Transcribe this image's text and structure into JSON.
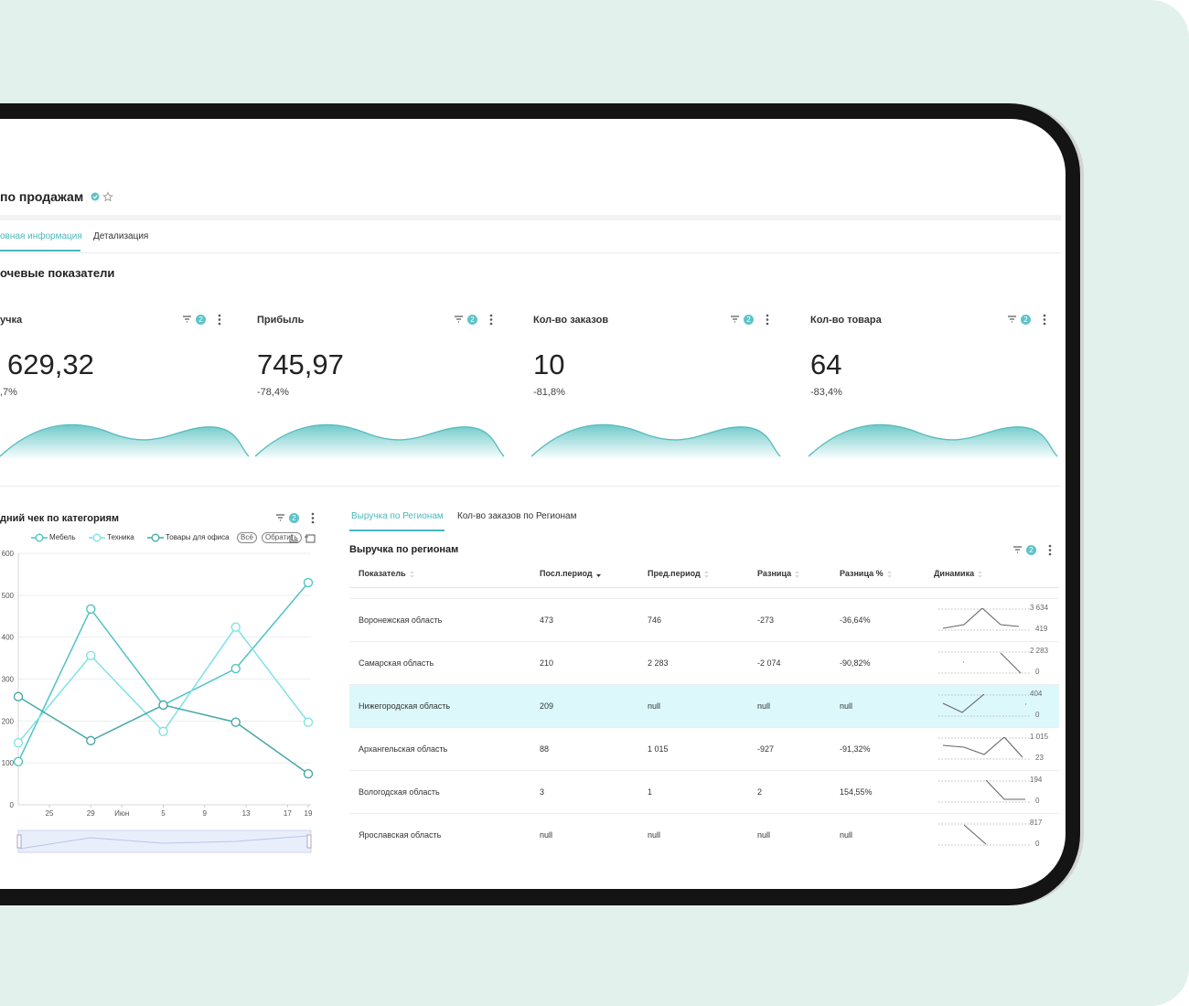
{
  "header": {
    "title": "по продажам"
  },
  "tabs": [
    "овная информация",
    "Детализация"
  ],
  "section_title": "очевые показатели",
  "kpis": [
    {
      "title": "учка",
      "value": "629,32",
      "change": ",7%",
      "filters": "2"
    },
    {
      "title": "Прибыль",
      "value": "745,97",
      "change": "-78,4%",
      "filters": "2"
    },
    {
      "title": "Кол-во заказов",
      "value": "10",
      "change": "-81,8%",
      "filters": "2"
    },
    {
      "title": "Кол-во товара",
      "value": "64",
      "change": "-83,4%",
      "filters": "2"
    }
  ],
  "chart_data": {
    "type": "line",
    "title": "дний чек по категориям",
    "filters": "2",
    "buttons": [
      "Всё",
      "Обратить"
    ],
    "x": [
      22,
      29,
      36,
      43,
      50
    ],
    "xlim": [
      22,
      50
    ],
    "xticks": [
      25,
      29,
      {
        "value": 32,
        "label": "Июн"
      },
      {
        "value": 36,
        "label": "5"
      },
      {
        "value": 40,
        "label": "9"
      },
      {
        "value": 44,
        "label": "13"
      },
      {
        "value": 48,
        "label": "17"
      },
      {
        "value": 50,
        "label": "19"
      }
    ],
    "ylim": [
      0,
      600
    ],
    "yticks": [
      0,
      100,
      200,
      300,
      400,
      500,
      600
    ],
    "grid": true,
    "series": [
      {
        "name": "Мебель",
        "color": "#52c2c4",
        "values": [
          103,
          467,
          238,
          325,
          530
        ]
      },
      {
        "name": "Техника",
        "color": "#7fe2e6",
        "values": [
          148,
          356,
          175,
          424,
          197
        ]
      },
      {
        "name": "Товары для офиса",
        "color": "#4aa8aa",
        "values": [
          258,
          153,
          238,
          197,
          74
        ]
      }
    ]
  },
  "table_tabs": [
    "Выручка по Регионам",
    "Кол-во заказов по Регионам"
  ],
  "table": {
    "title": "Выручка по регионам",
    "filters": "2",
    "columns": [
      "Показатель",
      "Посл.период",
      "Пред.период",
      "Разница",
      "Разница %",
      "Динамика"
    ],
    "rows": [
      {
        "cells": [
          "Воронежская область",
          "473",
          "746",
          "-273",
          "-36,64%"
        ],
        "range": [
          "3 634",
          "419"
        ]
      },
      {
        "cells": [
          "Самарская область",
          "210",
          "2 283",
          "-2 074",
          "-90,82%"
        ],
        "range": [
          "2 283",
          "0"
        ]
      },
      {
        "cells": [
          "Нижегородская область",
          "209",
          "null",
          "null",
          "null"
        ],
        "range": [
          "404",
          "0"
        ]
      },
      {
        "cells": [
          "Архангельская область",
          "88",
          "1 015",
          "-927",
          "-91,32%"
        ],
        "range": [
          "1 015",
          "23"
        ]
      },
      {
        "cells": [
          "Вологодская область",
          "3",
          "1",
          "2",
          "154,55%"
        ],
        "range": [
          "194",
          "0"
        ]
      },
      {
        "cells": [
          "Ярославская область",
          "null",
          "null",
          "null",
          "null"
        ],
        "range": [
          "817",
          "0"
        ]
      }
    ]
  }
}
